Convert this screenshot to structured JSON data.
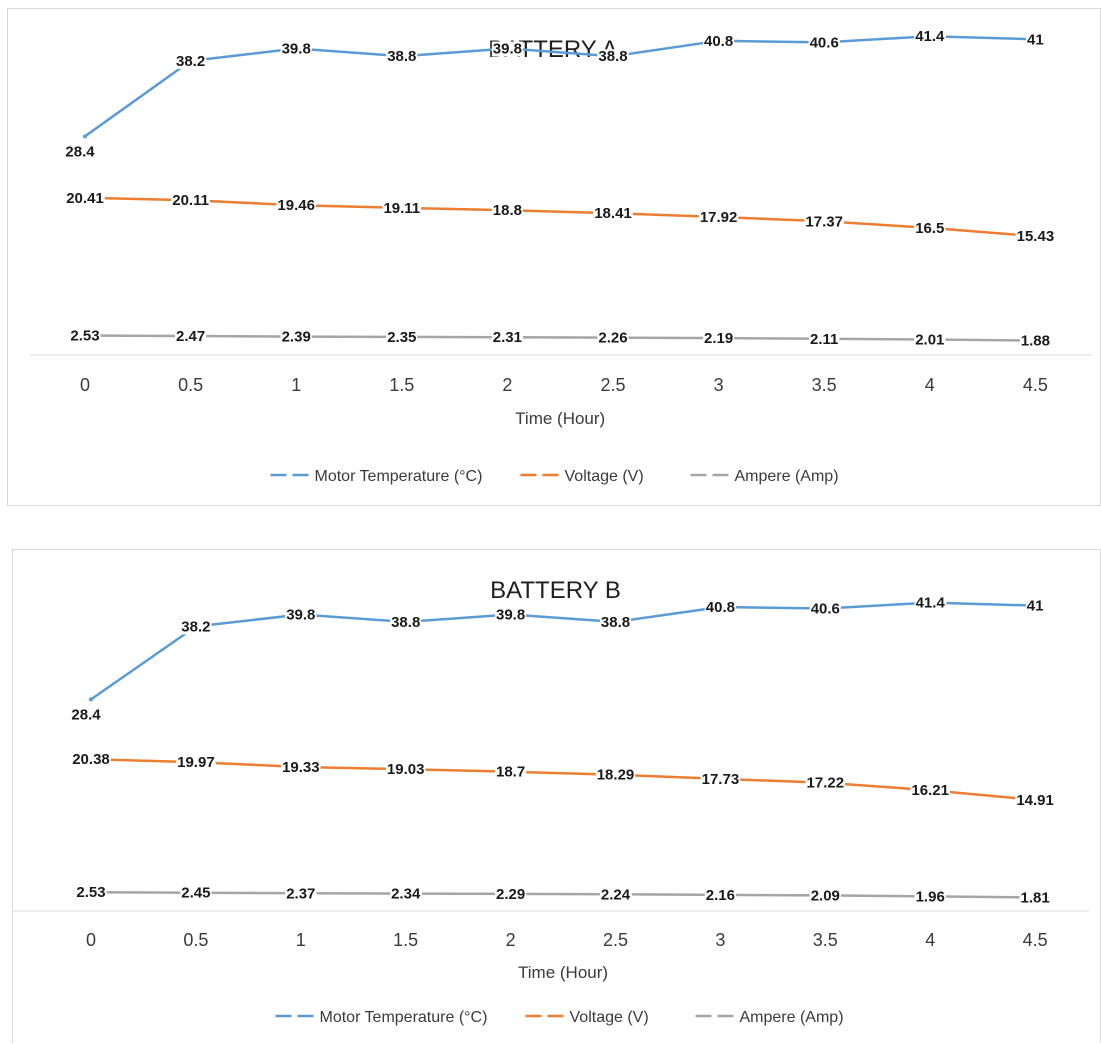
{
  "chart_data": [
    {
      "type": "line",
      "title": "BATTERY A",
      "xlabel": "Time (Hour)",
      "ylabel": "",
      "x": [
        "0",
        "0.5",
        "1",
        "1.5",
        "2",
        "2.5",
        "3",
        "3.5",
        "4",
        "4.5"
      ],
      "ylim": [
        0,
        45
      ],
      "legend_position": "bottom",
      "grid": false,
      "series": [
        {
          "name": "Motor Temperature (°C)",
          "color": "#5b9bd5",
          "values": [
            28.4,
            38.2,
            39.8,
            38.8,
            39.8,
            38.8,
            40.8,
            40.6,
            41.4,
            41
          ],
          "labels": [
            "28.4",
            "38.2",
            "39.8",
            "38.8",
            "39.8",
            "38.8",
            "40.8",
            "40.6",
            "41.4",
            "41"
          ]
        },
        {
          "name": "Voltage (V)",
          "color": "#ed7d31",
          "values": [
            20.41,
            20.11,
            19.46,
            19.11,
            18.8,
            18.41,
            17.92,
            17.37,
            16.5,
            15.43
          ],
          "labels": [
            "20.41",
            "20.11",
            "19.46",
            "19.11",
            "18.8",
            "18.41",
            "17.92",
            "17.37",
            "16.5",
            "15.43"
          ]
        },
        {
          "name": "Ampere (Amp)",
          "color": "#a5a5a5",
          "values": [
            2.53,
            2.47,
            2.39,
            2.35,
            2.31,
            2.26,
            2.19,
            2.11,
            2.01,
            1.88
          ],
          "labels": [
            "2.53",
            "2.47",
            "2.39",
            "2.35",
            "2.31",
            "2.26",
            "2.19",
            "2.11",
            "2.01",
            "1.88"
          ]
        }
      ]
    },
    {
      "type": "line",
      "title": "BATTERY B",
      "xlabel": "Time (Hour)",
      "ylabel": "",
      "x": [
        "0",
        "0.5",
        "1",
        "1.5",
        "2",
        "2.5",
        "3",
        "3.5",
        "4",
        "4.5"
      ],
      "ylim": [
        0,
        45
      ],
      "legend_position": "bottom",
      "grid": false,
      "series": [
        {
          "name": "Motor Temperature (°C)",
          "color": "#5b9bd5",
          "values": [
            28.4,
            38.2,
            39.8,
            38.8,
            39.8,
            38.8,
            40.8,
            40.6,
            41.4,
            41
          ],
          "labels": [
            "28.4",
            "38.2",
            "39.8",
            "38.8",
            "39.8",
            "38.8",
            "40.8",
            "40.6",
            "41.4",
            "41"
          ]
        },
        {
          "name": "Voltage (V)",
          "color": "#ed7d31",
          "values": [
            20.38,
            19.97,
            19.33,
            19.03,
            18.7,
            18.29,
            17.73,
            17.22,
            16.21,
            14.91
          ],
          "labels": [
            "20.38",
            "19.97",
            "19.33",
            "19.03",
            "18.7",
            "18.29",
            "17.73",
            "17.22",
            "16.21",
            "14.91"
          ]
        },
        {
          "name": "Ampere (Amp)",
          "color": "#a5a5a5",
          "values": [
            2.53,
            2.45,
            2.37,
            2.34,
            2.29,
            2.24,
            2.16,
            2.09,
            1.96,
            1.81
          ],
          "labels": [
            "2.53",
            "2.45",
            "2.37",
            "2.34",
            "2.29",
            "2.24",
            "2.16",
            "2.09",
            "1.96",
            "1.81"
          ]
        }
      ]
    }
  ]
}
